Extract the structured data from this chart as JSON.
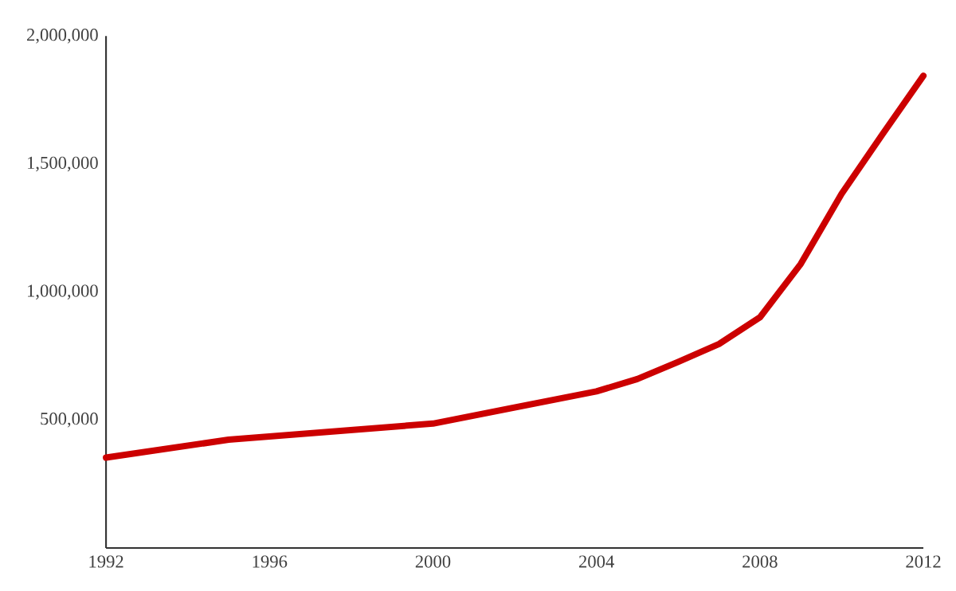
{
  "chart_data": {
    "type": "line",
    "x": [
      1992,
      1995,
      2000,
      2004,
      2005,
      2006,
      2007,
      2008,
      2009,
      2010,
      2011,
      2012
    ],
    "series": [
      {
        "color": "#cc0000",
        "values": [
          353000,
          423000,
          486000,
          612000,
          660000,
          727000,
          797000,
          901000,
          1110000,
          1384000,
          1617000,
          1845000
        ]
      }
    ],
    "xlim": [
      1992,
      2012
    ],
    "xticks": [
      1992,
      1996,
      2000,
      2004,
      2008,
      2012
    ],
    "ylim": [
      0,
      2000000
    ],
    "yticks": [
      {
        "value": 500000,
        "label": "500,000"
      },
      {
        "value": 1000000,
        "label": "1,000,000"
      },
      {
        "value": 1500000,
        "label": "1,500,000"
      },
      {
        "value": 2000000,
        "label": "2,000,000"
      }
    ],
    "marker": "none",
    "line_style": "solid"
  }
}
